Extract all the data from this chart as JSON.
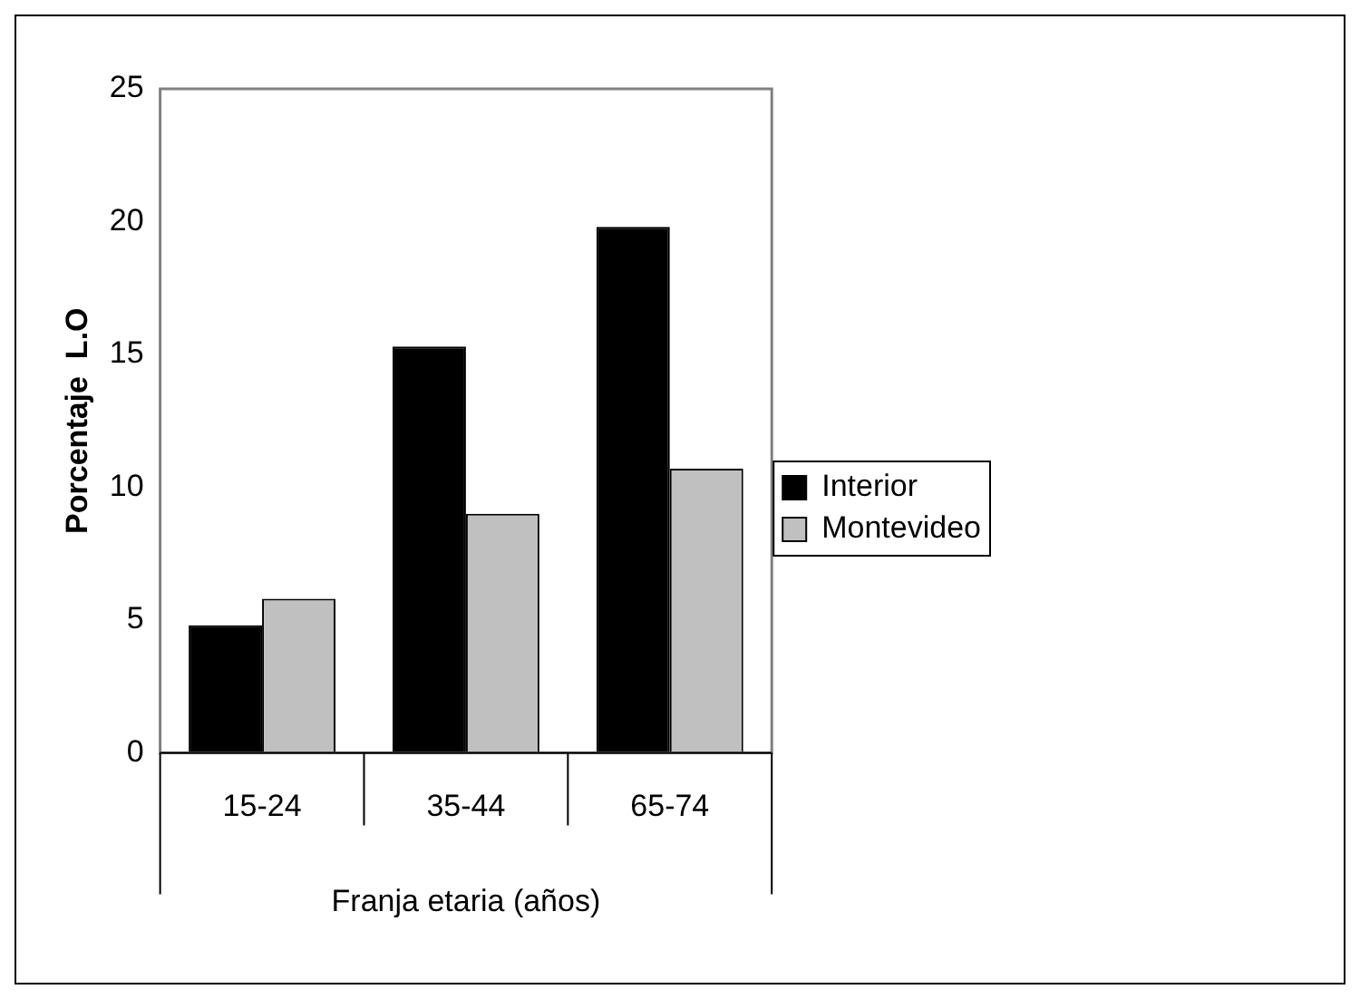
{
  "chart_data": {
    "type": "bar",
    "xlabel": "Franja etaria (años)",
    "ylabel": "Porcentaje  L.O",
    "categories": [
      "15-24",
      "35-44",
      "65-74"
    ],
    "series": [
      {
        "name": "Interior",
        "color": "#000000",
        "values": [
          4.8,
          15.3,
          19.8
        ]
      },
      {
        "name": "Montevideo",
        "color": "#c0c0c0",
        "values": [
          5.8,
          9.0,
          10.7
        ]
      }
    ],
    "ylim": [
      0,
      25
    ],
    "yticks": [
      0,
      5,
      10,
      15,
      20,
      25
    ],
    "grid": false,
    "legend": "right"
  }
}
